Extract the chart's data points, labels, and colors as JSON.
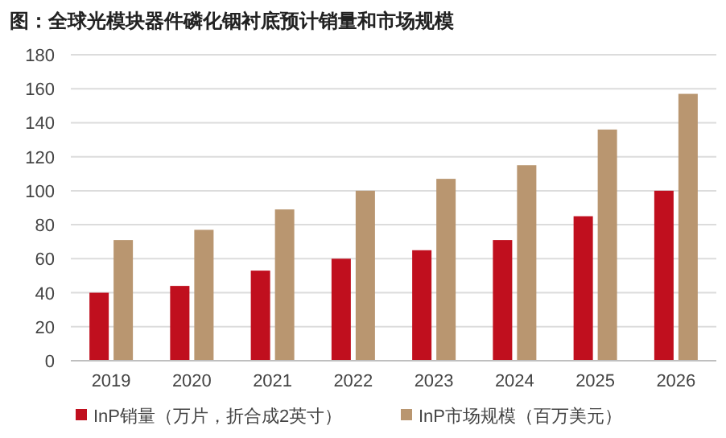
{
  "chart_data": {
    "type": "bar",
    "title": "图：全球光模块器件磷化铟衬底预计销量和市场规模",
    "categories": [
      "2019",
      "2020",
      "2021",
      "2022",
      "2023",
      "2024",
      "2025",
      "2026"
    ],
    "series": [
      {
        "name": "InP销量（万片，折合成2英寸）",
        "color": "#c00f1e",
        "values": [
          40,
          44,
          53,
          60,
          65,
          71,
          85,
          100
        ]
      },
      {
        "name": "InP市场规模（百万美元）",
        "color": "#b99670",
        "values": [
          71,
          77,
          89,
          100,
          107,
          115,
          136,
          157
        ]
      }
    ],
    "ylim": [
      0,
      180
    ],
    "yticks": [
      0,
      20,
      40,
      60,
      80,
      100,
      120,
      140,
      160,
      180
    ],
    "grid": "y",
    "legend": "bottom"
  }
}
